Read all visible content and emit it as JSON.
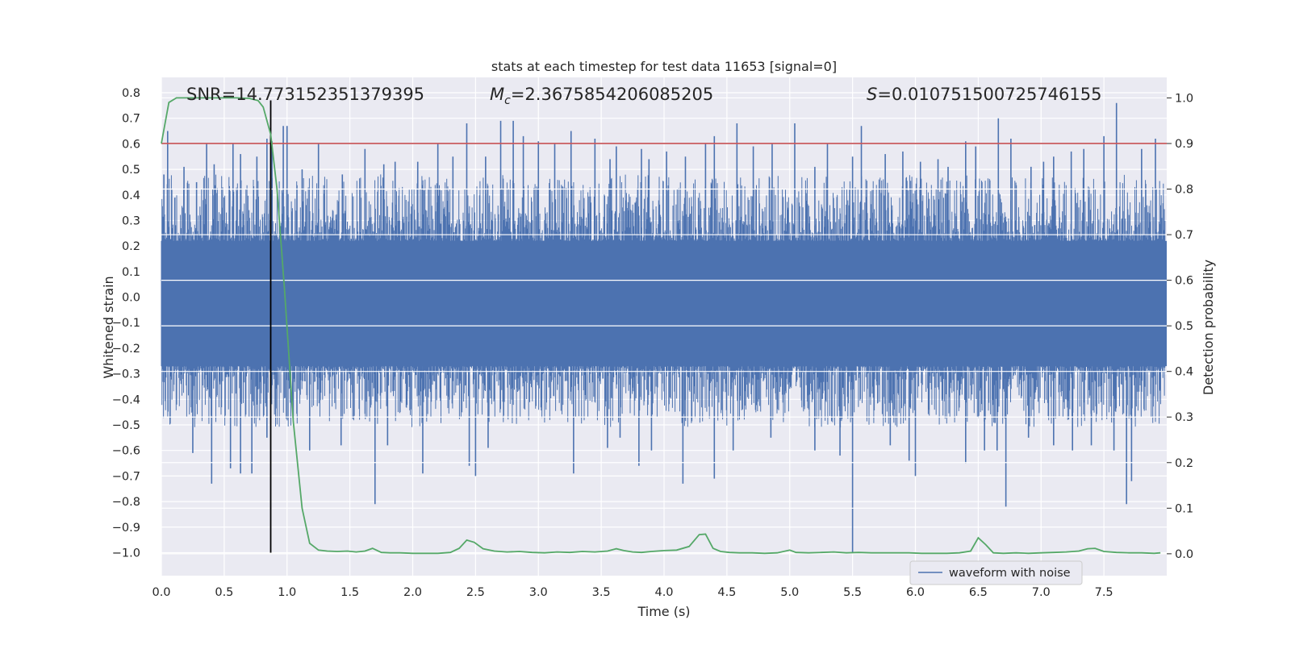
{
  "chart_data": {
    "type": "line",
    "title": "stats at each timestep for test data 11653 [signal=0]",
    "xlabel": "Time (s)",
    "ylabel": "Whitened strain",
    "y2label": "Detection probability",
    "xlim": [
      0.0,
      8.0
    ],
    "ylim": [
      -1.09,
      0.86
    ],
    "y2lim": [
      -0.048,
      1.045
    ],
    "x_ticks": [
      0.0,
      0.5,
      1.0,
      1.5,
      2.0,
      2.5,
      3.0,
      3.5,
      4.0,
      4.5,
      5.0,
      5.5,
      6.0,
      6.5,
      7.0,
      7.5
    ],
    "x_tick_labels": [
      "0.0",
      "0.5",
      "1.0",
      "1.5",
      "2.0",
      "2.5",
      "3.0",
      "3.5",
      "4.0",
      "4.5",
      "5.0",
      "5.5",
      "6.0",
      "6.5",
      "7.0",
      "7.5"
    ],
    "y_ticks": [
      0.8,
      0.7,
      0.6,
      0.5,
      0.4,
      0.3,
      0.2,
      0.1,
      0.0,
      -0.1,
      -0.2,
      -0.3,
      -0.4,
      -0.5,
      -0.6,
      -0.7,
      -0.8,
      -0.9,
      -1.0
    ],
    "y_tick_labels": [
      "0.8",
      "0.7",
      "0.6",
      "0.5",
      "0.4",
      "0.3",
      "0.2",
      "0.1",
      "0.0",
      "−0.1",
      "−0.2",
      "−0.3",
      "−0.4",
      "−0.5",
      "−0.6",
      "−0.7",
      "−0.8",
      "−0.9",
      "−1.0"
    ],
    "y2_ticks": [
      1.0,
      0.9,
      0.8,
      0.7,
      0.6,
      0.5,
      0.4,
      0.3,
      0.2,
      0.1,
      0.0
    ],
    "y2_tick_labels": [
      "1.0",
      "0.9",
      "0.8",
      "0.7",
      "0.6",
      "0.5",
      "0.4",
      "0.3",
      "0.2",
      "0.1",
      "0.0"
    ],
    "grid": true,
    "legend_position": "lower-right",
    "annotations": {
      "snr": "SNR=14.773152351379395",
      "mc_symbol": "M",
      "mc_sub": "c",
      "mc_value": "=2.3675854206085205",
      "s_symbol": "S",
      "s_value": "=0.010751500725746155"
    },
    "threshold_line": {
      "y2": 0.9,
      "color": "#c44e52"
    },
    "marker_line": {
      "x": 0.87,
      "y_from": -1.0,
      "y_to": 0.77,
      "color": "#000000"
    },
    "series": [
      {
        "name": "waveform with noise",
        "axis": "left",
        "color": "#4c72b0",
        "description_envelope": {
          "core_upper": 0.22,
          "core_lower": -0.27,
          "spike_tops_x": [
            0.02,
            0.05,
            0.18,
            0.28,
            0.36,
            0.42,
            0.57,
            0.63,
            0.76,
            0.84,
            0.88,
            0.97,
            1.0,
            1.12,
            1.25,
            1.44,
            1.62,
            1.77,
            1.86,
            2.04,
            2.2,
            2.32,
            2.43,
            2.58,
            2.7,
            2.8,
            2.88,
            3.0,
            3.13,
            3.26,
            3.45,
            3.57,
            3.62,
            3.82,
            3.88,
            4.02,
            4.17,
            4.33,
            4.4,
            4.58,
            4.71,
            4.86,
            5.04,
            5.2,
            5.3,
            5.5,
            5.57,
            5.76,
            5.9,
            6.04,
            6.18,
            6.26,
            6.4,
            6.48,
            6.66,
            6.76,
            6.92,
            7.02,
            7.1,
            7.24,
            7.34,
            7.5,
            7.6,
            7.8,
            7.91
          ],
          "spike_tops_y": [
            0.48,
            0.65,
            0.51,
            0.45,
            0.6,
            0.52,
            0.6,
            0.56,
            0.55,
            0.62,
            0.61,
            0.67,
            0.67,
            0.5,
            0.6,
            0.48,
            0.58,
            0.52,
            0.53,
            0.53,
            0.6,
            0.55,
            0.68,
            0.55,
            0.69,
            0.69,
            0.63,
            0.61,
            0.6,
            0.65,
            0.62,
            0.54,
            0.59,
            0.58,
            0.54,
            0.57,
            0.55,
            0.6,
            0.63,
            0.68,
            0.59,
            0.6,
            0.68,
            0.51,
            0.6,
            0.55,
            0.67,
            0.56,
            0.57,
            0.53,
            0.54,
            0.51,
            0.61,
            0.59,
            0.7,
            0.62,
            0.51,
            0.53,
            0.55,
            0.57,
            0.58,
            0.63,
            0.76,
            0.58,
            0.62
          ],
          "spike_bottoms_x": [
            0.25,
            0.4,
            0.55,
            0.63,
            0.72,
            0.84,
            1.18,
            1.43,
            1.7,
            1.8,
            2.08,
            2.45,
            2.5,
            2.6,
            3.28,
            3.55,
            3.65,
            3.8,
            3.9,
            4.15,
            4.4,
            4.55,
            4.85,
            5.2,
            5.4,
            5.5,
            5.8,
            5.95,
            6.0,
            6.4,
            6.55,
            6.65,
            6.72,
            6.9,
            7.1,
            7.25,
            7.4,
            7.58,
            7.68,
            7.72
          ],
          "spike_bottoms_y": [
            -0.61,
            -0.73,
            -0.67,
            -0.69,
            -0.69,
            -0.55,
            -0.6,
            -0.58,
            -0.81,
            -0.58,
            -0.69,
            -0.66,
            -0.7,
            -0.59,
            -0.69,
            -0.59,
            -0.55,
            -0.66,
            -0.6,
            -0.73,
            -0.71,
            -0.6,
            -0.55,
            -0.6,
            -0.62,
            -1.0,
            -0.58,
            -0.64,
            -0.7,
            -0.65,
            -0.6,
            -0.6,
            -0.82,
            -0.55,
            -0.58,
            -0.6,
            -0.58,
            -0.6,
            -0.81,
            -0.72
          ]
        }
      },
      {
        "name": "detection probability",
        "axis": "right",
        "color": "#55a868",
        "x": [
          0.0,
          0.06,
          0.12,
          0.2,
          0.3,
          0.4,
          0.5,
          0.6,
          0.7,
          0.77,
          0.81,
          0.87,
          0.92,
          0.98,
          1.05,
          1.12,
          1.18,
          1.25,
          1.32,
          1.4,
          1.48,
          1.55,
          1.62,
          1.68,
          1.75,
          1.82,
          1.9,
          2.0,
          2.1,
          2.2,
          2.3,
          2.37,
          2.43,
          2.49,
          2.56,
          2.65,
          2.75,
          2.85,
          2.95,
          3.05,
          3.15,
          3.25,
          3.35,
          3.45,
          3.55,
          3.62,
          3.68,
          3.75,
          3.82,
          3.9,
          4.0,
          4.1,
          4.2,
          4.28,
          4.33,
          4.39,
          4.45,
          4.52,
          4.6,
          4.7,
          4.8,
          4.9,
          5.0,
          5.05,
          5.15,
          5.25,
          5.35,
          5.45,
          5.55,
          5.65,
          5.75,
          5.85,
          5.95,
          6.05,
          6.15,
          6.25,
          6.35,
          6.44,
          6.5,
          6.56,
          6.62,
          6.7,
          6.8,
          6.9,
          7.0,
          7.1,
          7.2,
          7.3,
          7.37,
          7.43,
          7.5,
          7.6,
          7.7,
          7.8,
          7.9,
          7.95
        ],
        "y": [
          0.9,
          0.99,
          1.0,
          1.0,
          1.0,
          1.0,
          1.0,
          1.0,
          0.999,
          0.994,
          0.98,
          0.92,
          0.8,
          0.58,
          0.29,
          0.1,
          0.023,
          0.008,
          0.006,
          0.005,
          0.006,
          0.004,
          0.006,
          0.012,
          0.003,
          0.002,
          0.002,
          0.001,
          0.001,
          0.001,
          0.003,
          0.012,
          0.03,
          0.025,
          0.011,
          0.006,
          0.004,
          0.005,
          0.003,
          0.002,
          0.004,
          0.003,
          0.005,
          0.004,
          0.006,
          0.011,
          0.007,
          0.004,
          0.003,
          0.005,
          0.007,
          0.008,
          0.016,
          0.042,
          0.043,
          0.012,
          0.005,
          0.003,
          0.002,
          0.002,
          0.001,
          0.002,
          0.008,
          0.003,
          0.002,
          0.003,
          0.004,
          0.002,
          0.003,
          0.002,
          0.002,
          0.002,
          0.002,
          0.001,
          0.001,
          0.001,
          0.002,
          0.006,
          0.035,
          0.02,
          0.002,
          0.001,
          0.002,
          0.001,
          0.002,
          0.003,
          0.004,
          0.006,
          0.011,
          0.012,
          0.005,
          0.003,
          0.002,
          0.002,
          0.001,
          0.002
        ]
      }
    ]
  }
}
